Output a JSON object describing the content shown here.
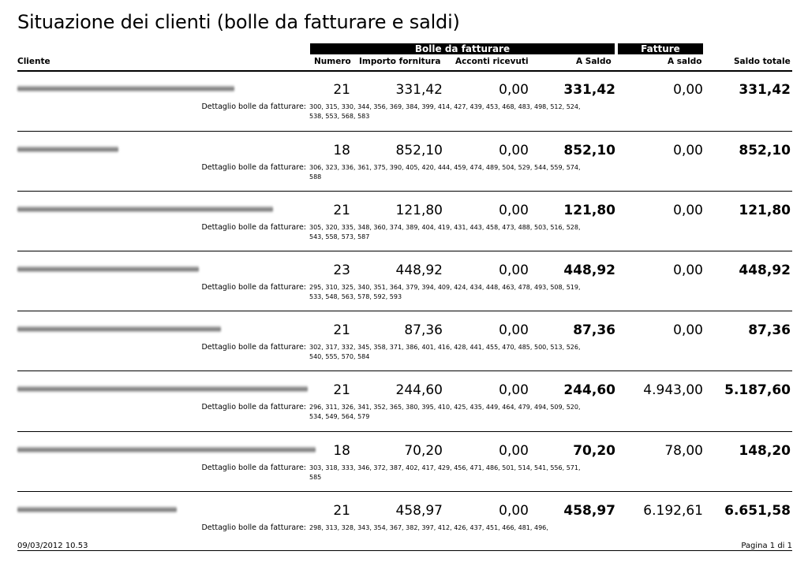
{
  "title": "Situazione dei clienti (bolle da fatturare e saldi)",
  "groups": {
    "bolle": "Bolle da fatturare",
    "fatture": "Fatture"
  },
  "columns": {
    "cliente": "Cliente",
    "numero": "Numero",
    "importo": "Importo fornitura",
    "acconti": "Acconti ricevuti",
    "a_saldo_bolle": "A Saldo",
    "a_saldo_fatture": "A saldo",
    "saldo_totale": "Saldo totale"
  },
  "detail_label": "Dettaglio bolle da fatturare:",
  "rows": [
    {
      "numero": "21",
      "importo": "331,42",
      "acconti": "0,00",
      "a_saldo": "331,42",
      "fatture": "0,00",
      "totale": "331,42",
      "dettaglio": "300, 315, 330, 344, 356, 369, 384, 399, 414, 427, 439, 453, 468, 483, 498, 512, 524, 538, 553, 568, 583"
    },
    {
      "numero": "18",
      "importo": "852,10",
      "acconti": "0,00",
      "a_saldo": "852,10",
      "fatture": "0,00",
      "totale": "852,10",
      "dettaglio": "306, 323, 336, 361, 375, 390, 405, 420, 444, 459, 474, 489, 504, 529, 544, 559, 574, 588"
    },
    {
      "numero": "21",
      "importo": "121,80",
      "acconti": "0,00",
      "a_saldo": "121,80",
      "fatture": "0,00",
      "totale": "121,80",
      "dettaglio": "305, 320, 335, 348, 360, 374, 389, 404, 419, 431, 443, 458, 473, 488, 503, 516, 528, 543, 558, 573, 587"
    },
    {
      "numero": "23",
      "importo": "448,92",
      "acconti": "0,00",
      "a_saldo": "448,92",
      "fatture": "0,00",
      "totale": "448,92",
      "dettaglio": "295, 310, 325, 340, 351, 364, 379, 394, 409, 424, 434, 448, 463, 478, 493, 508, 519, 533, 548, 563, 578, 592, 593"
    },
    {
      "numero": "21",
      "importo": "87,36",
      "acconti": "0,00",
      "a_saldo": "87,36",
      "fatture": "0,00",
      "totale": "87,36",
      "dettaglio": "302, 317, 332, 345, 358, 371, 386, 401, 416, 428, 441, 455, 470, 485, 500, 513, 526, 540, 555, 570, 584"
    },
    {
      "numero": "21",
      "importo": "244,60",
      "acconti": "0,00",
      "a_saldo": "244,60",
      "fatture": "4.943,00",
      "totale": "5.187,60",
      "dettaglio": "296, 311, 326, 341, 352, 365, 380, 395, 410, 425, 435, 449, 464, 479, 494, 509, 520, 534, 549, 564, 579"
    },
    {
      "numero": "18",
      "importo": "70,20",
      "acconti": "0,00",
      "a_saldo": "70,20",
      "fatture": "78,00",
      "totale": "148,20",
      "dettaglio": "303, 318, 333, 346, 372, 387, 402, 417, 429, 456, 471, 486, 501, 514, 541, 556, 571, 585"
    },
    {
      "numero": "21",
      "importo": "458,97",
      "acconti": "0,00",
      "a_saldo": "458,97",
      "fatture": "6.192,61",
      "totale": "6.651,58",
      "dettaglio": "298, 313, 328, 343, 354, 367, 382, 397, 412, 426, 437, 451, 466, 481, 496,"
    }
  ],
  "footer": {
    "timestamp": "09/03/2012 10.53",
    "page": "Pagina 1 di 1"
  }
}
